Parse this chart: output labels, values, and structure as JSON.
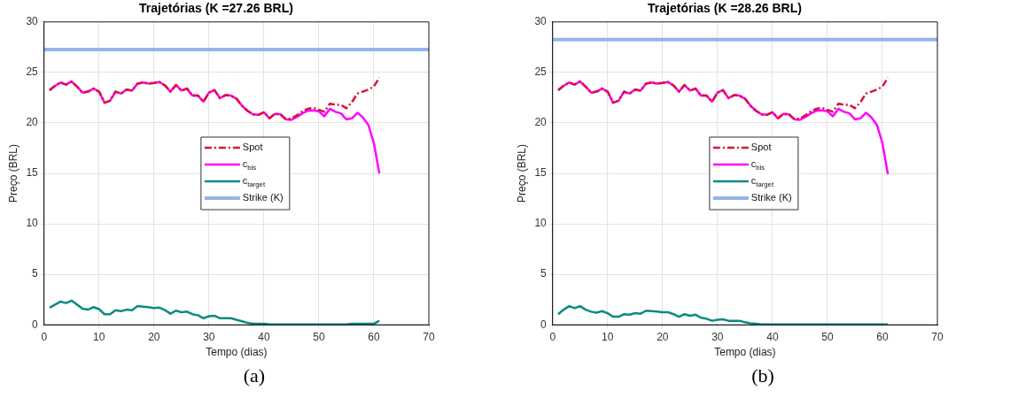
{
  "chart_data": [
    {
      "type": "line",
      "title": "Trajetórias (K =27.26 BRL)",
      "xlabel": "Tempo (dias)",
      "ylabel": "Preço (BRL)",
      "x": [
        1,
        2,
        3,
        4,
        5,
        6,
        7,
        8,
        9,
        10,
        11,
        12,
        13,
        14,
        15,
        16,
        17,
        18,
        19,
        20,
        21,
        22,
        23,
        24,
        25,
        26,
        27,
        28,
        29,
        30,
        31,
        32,
        33,
        34,
        35,
        36,
        37,
        38,
        39,
        40,
        41,
        42,
        43,
        44,
        45,
        46,
        47,
        48,
        49,
        50,
        51,
        52,
        53,
        54,
        55,
        56,
        57,
        58,
        59,
        60,
        61
      ],
      "series": [
        {
          "name": "Spot",
          "color": "#d7153a",
          "line_style": "dashed",
          "values": [
            23.24,
            23.67,
            24.0,
            23.8,
            24.1,
            23.6,
            23.0,
            23.1,
            23.4,
            23.1,
            22.0,
            22.2,
            23.1,
            22.9,
            23.3,
            23.2,
            23.9,
            24.0,
            23.9,
            23.95,
            24.05,
            23.7,
            23.1,
            23.75,
            23.2,
            23.4,
            22.7,
            22.7,
            22.1,
            23.0,
            23.25,
            22.45,
            22.75,
            22.7,
            22.4,
            21.7,
            21.2,
            20.85,
            20.8,
            21.05,
            20.45,
            20.9,
            20.85,
            20.35,
            20.45,
            20.75,
            21.15,
            21.4,
            21.5,
            21.3,
            21.1,
            21.9,
            21.8,
            21.8,
            21.45,
            22.05,
            22.9,
            23.1,
            23.3,
            23.6,
            24.5
          ]
        },
        {
          "name": "c$_{bls}$",
          "color": "#ff00ff",
          "line_style": "solid",
          "values": [
            23.24,
            23.67,
            24.0,
            23.8,
            24.1,
            23.6,
            23.0,
            23.1,
            23.4,
            23.1,
            22.0,
            22.2,
            23.1,
            22.9,
            23.3,
            23.2,
            23.9,
            24.0,
            23.9,
            23.95,
            24.05,
            23.7,
            23.1,
            23.75,
            23.2,
            23.4,
            22.7,
            22.7,
            22.1,
            23.0,
            23.25,
            22.45,
            22.75,
            22.7,
            22.4,
            21.7,
            21.2,
            20.85,
            20.8,
            21.05,
            20.45,
            20.9,
            20.85,
            20.35,
            20.3,
            20.6,
            20.95,
            21.2,
            21.25,
            21.15,
            20.65,
            21.4,
            21.1,
            20.95,
            20.35,
            20.45,
            21.0,
            20.55,
            19.8,
            18.0,
            15.0
          ]
        },
        {
          "name": "c$_{target}$",
          "color": "#0b8a84",
          "line_style": "solid",
          "values": [
            1.7,
            2.0,
            2.3,
            2.15,
            2.4,
            2.0,
            1.6,
            1.5,
            1.75,
            1.55,
            1.05,
            1.05,
            1.45,
            1.35,
            1.5,
            1.45,
            1.85,
            1.8,
            1.75,
            1.65,
            1.7,
            1.45,
            1.1,
            1.4,
            1.25,
            1.3,
            1.05,
            0.95,
            0.65,
            0.85,
            0.9,
            0.65,
            0.65,
            0.65,
            0.5,
            0.35,
            0.2,
            0.1,
            0.1,
            0.1,
            0.05,
            0.05,
            0.05,
            0.05,
            0.05,
            0.05,
            0.05,
            0.05,
            0.05,
            0.05,
            0.05,
            0.05,
            0.05,
            0.05,
            0.05,
            0.1,
            0.1,
            0.1,
            0.1,
            0.1,
            0.4
          ]
        }
      ],
      "ref_lines": [
        {
          "axis": "y",
          "value": 27.26,
          "label": "Strike (K)",
          "color": "#94b4ea"
        }
      ],
      "xlim": [
        0,
        70
      ],
      "xticks": [
        0,
        10,
        20,
        30,
        40,
        50,
        60,
        70
      ],
      "ylim": [
        0,
        30
      ],
      "yticks": [
        0,
        5,
        10,
        15,
        20,
        25,
        30
      ],
      "grid": true,
      "legend": "center",
      "annotations": [
        "(a)"
      ]
    },
    {
      "type": "line",
      "title": "Trajetórias (K =28.26 BRL)",
      "xlabel": "Tempo (dias)",
      "ylabel": "Preço (BRL)",
      "x": [
        1,
        2,
        3,
        4,
        5,
        6,
        7,
        8,
        9,
        10,
        11,
        12,
        13,
        14,
        15,
        16,
        17,
        18,
        19,
        20,
        21,
        22,
        23,
        24,
        25,
        26,
        27,
        28,
        29,
        30,
        31,
        32,
        33,
        34,
        35,
        36,
        37,
        38,
        39,
        40,
        41,
        42,
        43,
        44,
        45,
        46,
        47,
        48,
        49,
        50,
        51,
        52,
        53,
        54,
        55,
        56,
        57,
        58,
        59,
        60,
        61
      ],
      "series": [
        {
          "name": "Spot",
          "color": "#d7153a",
          "line_style": "dashed",
          "values": [
            23.24,
            23.67,
            24.0,
            23.8,
            24.1,
            23.6,
            23.0,
            23.1,
            23.4,
            23.1,
            22.0,
            22.2,
            23.1,
            22.9,
            23.3,
            23.2,
            23.9,
            24.0,
            23.9,
            23.95,
            24.05,
            23.7,
            23.1,
            23.75,
            23.2,
            23.4,
            22.7,
            22.7,
            22.1,
            23.0,
            23.25,
            22.45,
            22.75,
            22.7,
            22.4,
            21.7,
            21.2,
            20.85,
            20.8,
            21.05,
            20.45,
            20.9,
            20.85,
            20.35,
            20.45,
            20.75,
            21.15,
            21.4,
            21.5,
            21.3,
            21.1,
            21.9,
            21.8,
            21.8,
            21.45,
            22.05,
            22.9,
            23.1,
            23.3,
            23.6,
            24.5
          ]
        },
        {
          "name": "c$_{bls}$",
          "color": "#ff00ff",
          "line_style": "solid",
          "values": [
            23.24,
            23.67,
            24.0,
            23.8,
            24.1,
            23.6,
            23.0,
            23.1,
            23.4,
            23.1,
            22.0,
            22.2,
            23.1,
            22.9,
            23.3,
            23.2,
            23.9,
            24.0,
            23.9,
            23.95,
            24.05,
            23.7,
            23.1,
            23.75,
            23.2,
            23.4,
            22.7,
            22.7,
            22.1,
            23.0,
            23.25,
            22.45,
            22.75,
            22.7,
            22.4,
            21.7,
            21.2,
            20.85,
            20.8,
            21.05,
            20.45,
            20.9,
            20.85,
            20.35,
            20.3,
            20.6,
            20.95,
            21.2,
            21.25,
            21.15,
            20.65,
            21.4,
            21.1,
            20.95,
            20.35,
            20.45,
            21.0,
            20.55,
            19.8,
            18.0,
            14.9
          ]
        },
        {
          "name": "c$_{target}$",
          "color": "#0b8a84",
          "line_style": "solid",
          "values": [
            1.05,
            1.5,
            1.85,
            1.65,
            1.85,
            1.5,
            1.3,
            1.2,
            1.35,
            1.15,
            0.8,
            0.8,
            1.05,
            1.0,
            1.15,
            1.1,
            1.4,
            1.35,
            1.3,
            1.25,
            1.25,
            1.05,
            0.8,
            1.05,
            0.9,
            1.0,
            0.7,
            0.6,
            0.4,
            0.5,
            0.55,
            0.4,
            0.4,
            0.4,
            0.25,
            0.15,
            0.1,
            0.05,
            0.05,
            0.05,
            0.05,
            0.05,
            0.05,
            0.05,
            0.05,
            0.05,
            0.05,
            0.05,
            0.05,
            0.05,
            0.05,
            0.05,
            0.05,
            0.05,
            0.05,
            0.05,
            0.05,
            0.05,
            0.05,
            0.05,
            0.05
          ]
        }
      ],
      "ref_lines": [
        {
          "axis": "y",
          "value": 28.26,
          "label": "Strike (K)",
          "color": "#94b4ea"
        }
      ],
      "xlim": [
        0,
        70
      ],
      "xticks": [
        0,
        10,
        20,
        30,
        40,
        50,
        60,
        70
      ],
      "ylim": [
        0,
        30
      ],
      "yticks": [
        0,
        5,
        10,
        15,
        20,
        25,
        30
      ],
      "grid": true,
      "legend": "center",
      "annotations": [
        "(b)"
      ]
    }
  ]
}
